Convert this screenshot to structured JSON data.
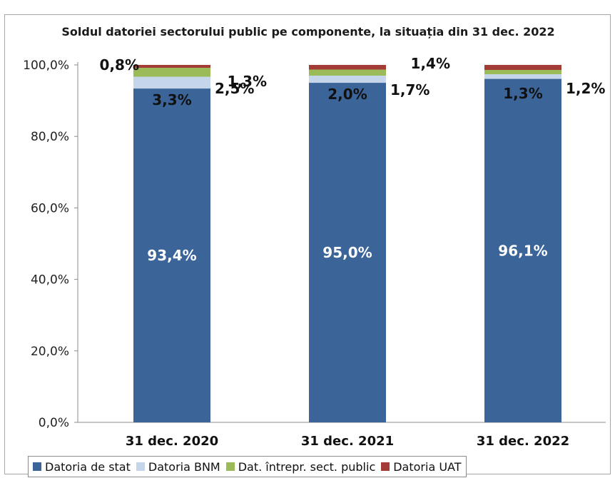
{
  "chart_data": {
    "type": "bar",
    "stacked": true,
    "title": "Soldul datoriei sectorului public pe componente, la situația din 31 dec. 2022",
    "categories": [
      "31 dec. 2020",
      "31 dec. 2021",
      "31 dec. 2022"
    ],
    "series": [
      {
        "name": "Datoria de stat",
        "color": "#3b6499",
        "values": [
          93.4,
          95.0,
          96.1
        ],
        "labels": [
          "93,4%",
          "95,0%",
          "96,1%"
        ]
      },
      {
        "name": "Datoria BNM",
        "color": "#c5d6ea",
        "values": [
          3.3,
          2.0,
          1.3
        ],
        "labels": [
          "3,3%",
          "2,0%",
          "1,3%"
        ]
      },
      {
        "name": "Dat. întrepr. sect. public",
        "color": "#9bbb59",
        "values": [
          2.5,
          1.7,
          1.2
        ],
        "labels": [
          "2,5%",
          "1,7%",
          "1,2%"
        ]
      },
      {
        "name": "Datoria UAT",
        "color": "#a33b36",
        "values": [
          0.8,
          1.3,
          1.4
        ],
        "labels": [
          "0,8%",
          "1,3%",
          "1,4%"
        ]
      }
    ],
    "yticks": [
      "0,0%",
      "20,0%",
      "40,0%",
      "60,0%",
      "80,0%",
      "100,0%"
    ],
    "ylim": [
      0,
      100
    ],
    "grid": false,
    "legend_position": "bottom"
  }
}
